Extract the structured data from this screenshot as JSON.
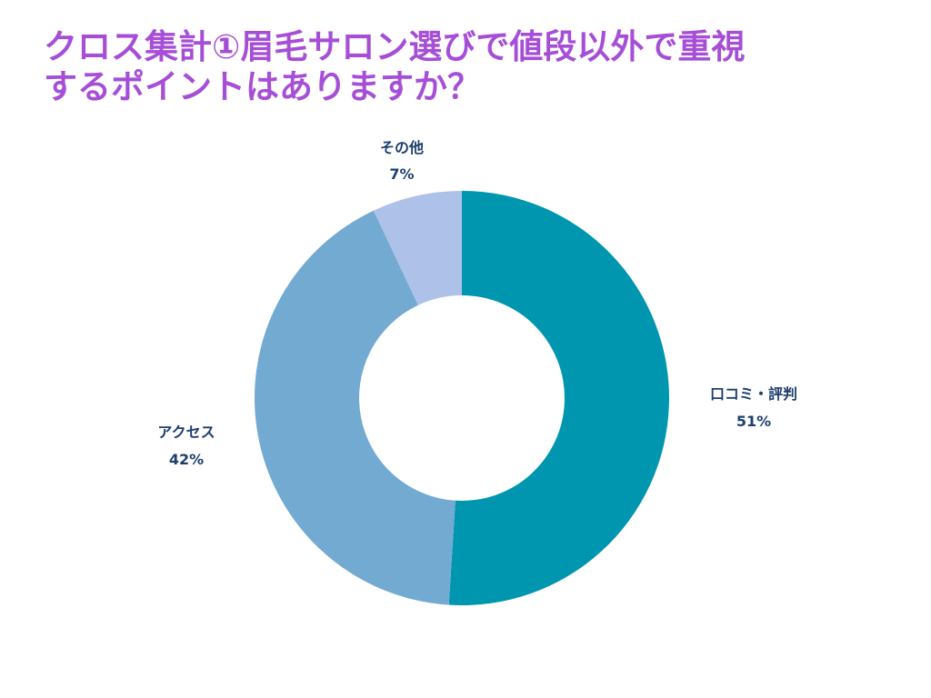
{
  "title_lines": [
    "クロス集計①眉毛サロン選びで値段以外で重視",
    "するポイントはありますか？"
  ],
  "chart_data": {
    "type": "pie",
    "donut": true,
    "title": "クロス集計①眉毛サロン選びで値段以外で重視するポイントはありますか？",
    "slices": [
      {
        "label": "口コミ・評判",
        "value": 51,
        "value_label": "51%",
        "color": "#0096b0"
      },
      {
        "label": "アクセス",
        "value": 42,
        "value_label": "42%",
        "color": "#72aad2"
      },
      {
        "label": "その他",
        "value": 7,
        "value_label": "7%",
        "color": "#aec1e8"
      }
    ],
    "start": "12 o'clock",
    "direction": "clockwise"
  },
  "colors": {
    "title": "#a64fd6",
    "label_text": "#1d3f6e"
  }
}
